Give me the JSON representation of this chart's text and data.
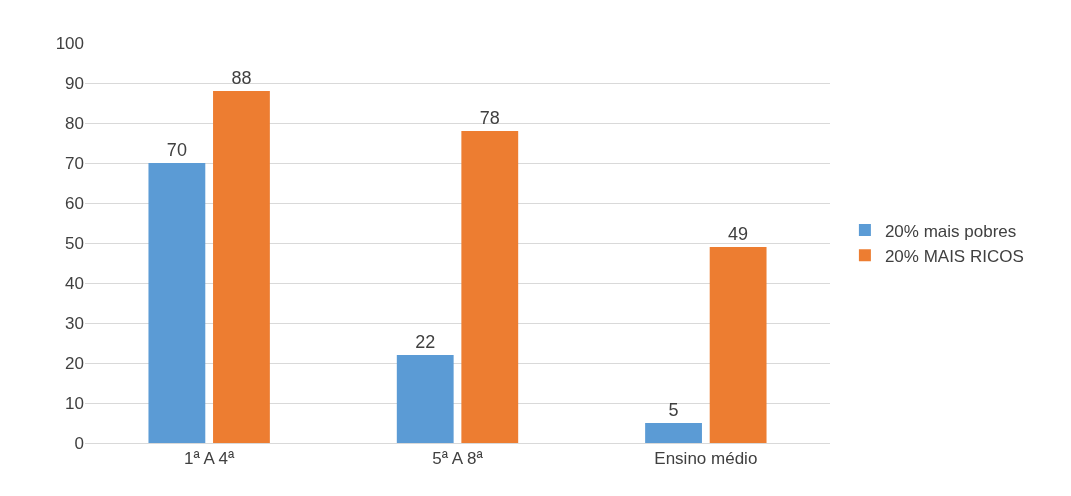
{
  "chart_data": {
    "type": "bar",
    "categories": [
      "1ª A 4ª",
      "5ª A 8ª",
      "Ensino médio"
    ],
    "series": [
      {
        "name": "20% mais pobres",
        "color": "#5b9bd5",
        "values": [
          70,
          22,
          5
        ]
      },
      {
        "name": "20% MAIS RICOS",
        "color": "#ed7d31",
        "values": [
          88,
          78,
          49
        ]
      }
    ],
    "ylim": [
      0,
      100
    ],
    "yticks": [
      0,
      10,
      20,
      30,
      40,
      50,
      60,
      70,
      80,
      90,
      100
    ],
    "grid": "y",
    "legend": "right",
    "data_labels": true
  }
}
